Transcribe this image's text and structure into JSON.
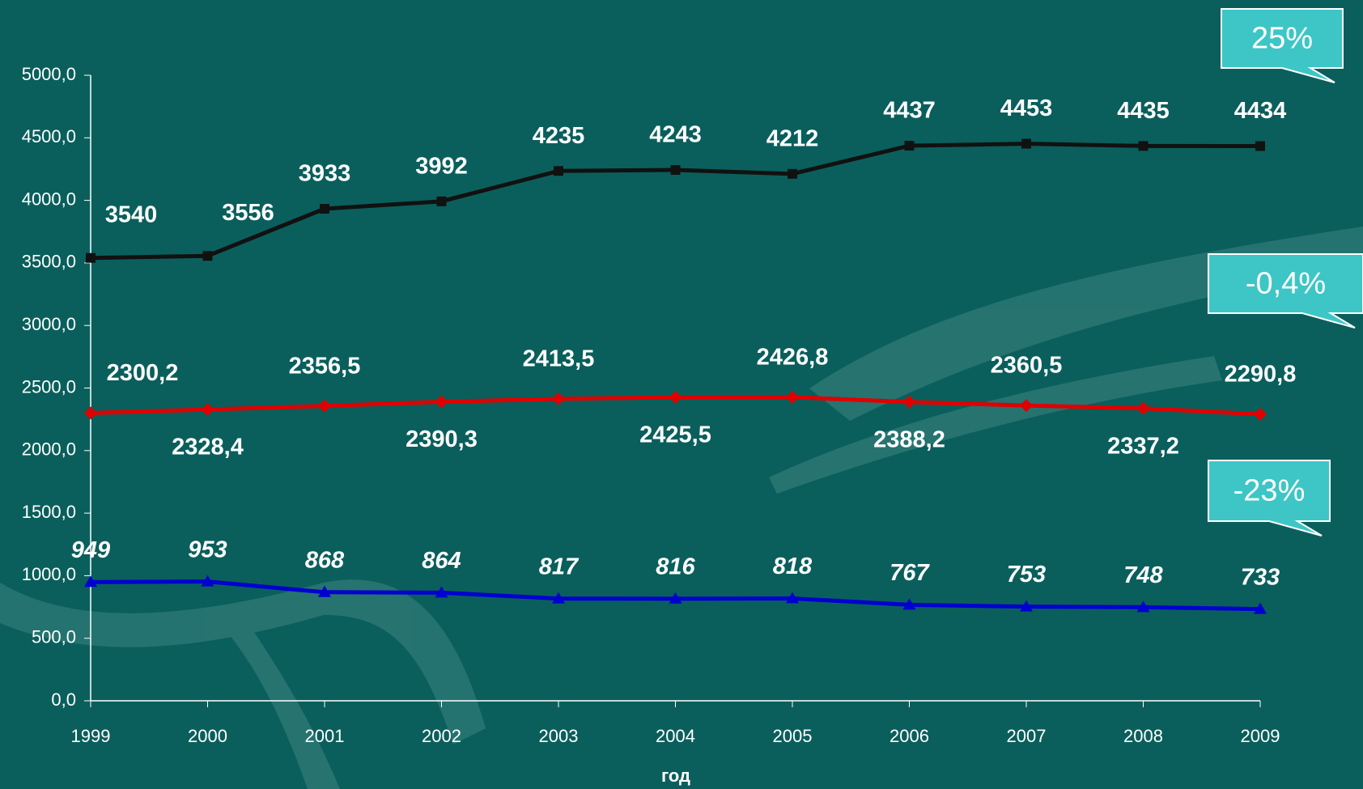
{
  "chart_data": {
    "type": "line",
    "categories": [
      "1999",
      "2000",
      "2001",
      "2002",
      "2003",
      "2004",
      "2005",
      "2006",
      "2007",
      "2008",
      "2009"
    ],
    "x_label": "год",
    "series": [
      {
        "color": "#111111",
        "marker": "square",
        "values": [
          3540,
          3556,
          3933,
          3992,
          4235,
          4243,
          4212,
          4437,
          4453,
          4435,
          4434
        ]
      },
      {
        "color": "#e00000",
        "marker": "diamond",
        "values": [
          2300.2,
          2328.4,
          2356.5,
          2390.3,
          2413.5,
          2425.5,
          2426.8,
          2388.2,
          2360.5,
          2337.2,
          2290.8
        ],
        "value_labels": [
          "2300,2",
          "2328,4",
          "2356,5",
          "2390,3",
          "2413,5",
          "2425,5",
          "2426,8",
          "2388,2",
          "2360,5",
          "2337,2",
          "2290,8"
        ]
      },
      {
        "color": "#0000d0",
        "marker": "triangle",
        "values": [
          949,
          953,
          868,
          864,
          817,
          816,
          818,
          767,
          753,
          748,
          733
        ]
      }
    ],
    "ylim": [
      0,
      5000
    ],
    "yticks": [
      {
        "value": 0,
        "label": "0,0"
      },
      {
        "value": 500,
        "label": "500,0"
      },
      {
        "value": 1000,
        "label": "1000,0"
      },
      {
        "value": 1500,
        "label": "1500,0"
      },
      {
        "value": 2000,
        "label": "2000,0"
      },
      {
        "value": 2500,
        "label": "2500,0"
      },
      {
        "value": 3000,
        "label": "3000,0"
      },
      {
        "value": 3500,
        "label": "3500,0"
      },
      {
        "value": 4000,
        "label": "4000,0"
      },
      {
        "value": 4500,
        "label": "4500,0"
      },
      {
        "value": 5000,
        "label": "5000,0"
      }
    ],
    "annotations": [
      "25%",
      "-0,4%",
      "-23%"
    ]
  }
}
